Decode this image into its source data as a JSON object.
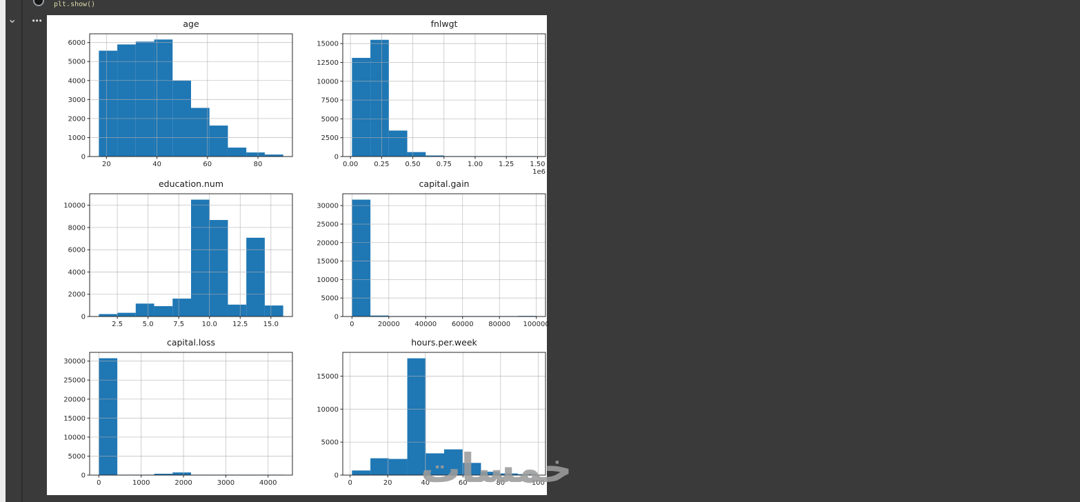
{
  "notebook": {
    "code_line": "plt.show()",
    "collapse_chevron": "⌄",
    "more_options": "⋯",
    "watermark": "خمسات"
  },
  "colors": {
    "bar": "#1f77b4",
    "grid": "#b0b0b0",
    "axis": "#262626",
    "page_bg": "#3a3a3a",
    "panel_bg": "#ffffff",
    "code_text": "#dcdcaa"
  },
  "chart_data": [
    {
      "type": "bar",
      "title": "age",
      "bin_start": 17,
      "bin_end": 90,
      "values": [
        5570,
        5900,
        6050,
        6160,
        4000,
        2560,
        1630,
        470,
        215,
        105
      ],
      "xlim": [
        13.35,
        93.65
      ],
      "ylim": [
        0,
        6460
      ],
      "xtick_vals": [
        20,
        40,
        60,
        80
      ],
      "xtick_labels": [
        "20",
        "40",
        "60",
        "80"
      ],
      "ytick_vals": [
        0,
        1000,
        2000,
        3000,
        4000,
        5000,
        6000
      ],
      "ytick_labels": [
        "0",
        "1000",
        "2000",
        "3000",
        "4000",
        "5000",
        "6000"
      ],
      "offset_label": ""
    },
    {
      "type": "bar",
      "title": "fnlwgt",
      "bin_start": 12300,
      "bin_end": 1490400,
      "values": [
        13100,
        15500,
        3450,
        590,
        140,
        45,
        15,
        8,
        3,
        2
      ],
      "xlim": [
        -61600,
        1564300
      ],
      "ylim": [
        0,
        16300
      ],
      "xtick_vals": [
        0,
        250000,
        500000,
        750000,
        1000000,
        1250000,
        1500000
      ],
      "xtick_labels": [
        "0.00",
        "0.25",
        "0.50",
        "0.75",
        "1.00",
        "1.25",
        "1.50"
      ],
      "ytick_vals": [
        0,
        2500,
        5000,
        7500,
        10000,
        12500,
        15000
      ],
      "ytick_labels": [
        "0",
        "2500",
        "5000",
        "7500",
        "10000",
        "12500",
        "15000"
      ],
      "offset_label": "1e6"
    },
    {
      "type": "bar",
      "title": "education.num",
      "bin_start": 1,
      "bin_end": 16,
      "values": [
        219,
        333,
        1160,
        933,
        1608,
        10501,
        8673,
        1067,
        7078,
        989
      ],
      "xlim": [
        0.25,
        16.75
      ],
      "ylim": [
        0,
        11030
      ],
      "xtick_vals": [
        2.5,
        5.0,
        7.5,
        10.0,
        12.5,
        15.0
      ],
      "xtick_labels": [
        "2.5",
        "5.0",
        "7.5",
        "10.0",
        "12.5",
        "15.0"
      ],
      "ytick_vals": [
        0,
        2000,
        4000,
        6000,
        8000,
        10000
      ],
      "ytick_labels": [
        "0",
        "2000",
        "4000",
        "6000",
        "8000",
        "10000"
      ],
      "offset_label": ""
    },
    {
      "type": "bar",
      "title": "capital.gain",
      "bin_start": 0,
      "bin_end": 99999,
      "values": [
        31610,
        260,
        80,
        25,
        10,
        6,
        3,
        2,
        1,
        159
      ],
      "xlim": [
        -5000,
        104999
      ],
      "ylim": [
        0,
        33200
      ],
      "xtick_vals": [
        0,
        20000,
        40000,
        60000,
        80000,
        100000
      ],
      "xtick_labels": [
        "0",
        "20000",
        "40000",
        "60000",
        "80000",
        "100000"
      ],
      "ytick_vals": [
        0,
        5000,
        10000,
        15000,
        20000,
        25000,
        30000
      ],
      "ytick_labels": [
        "0",
        "5000",
        "10000",
        "15000",
        "20000",
        "25000",
        "30000"
      ],
      "offset_label": ""
    },
    {
      "type": "bar",
      "title": "capital.loss",
      "bin_start": 0,
      "bin_end": 4356,
      "values": [
        30750,
        12,
        6,
        360,
        700,
        110,
        18,
        6,
        2,
        1
      ],
      "xlim": [
        -218,
        4574
      ],
      "ylim": [
        0,
        32300
      ],
      "xtick_vals": [
        0,
        1000,
        2000,
        3000,
        4000
      ],
      "xtick_labels": [
        "0",
        "1000",
        "2000",
        "3000",
        "4000"
      ],
      "ytick_vals": [
        0,
        5000,
        10000,
        15000,
        20000,
        25000,
        30000
      ],
      "ytick_labels": [
        "0",
        "5000",
        "10000",
        "15000",
        "20000",
        "25000",
        "30000"
      ],
      "offset_label": ""
    },
    {
      "type": "bar",
      "title": "hours.per.week",
      "bin_start": 1,
      "bin_end": 99,
      "values": [
        700,
        2550,
        2450,
        17700,
        3300,
        3900,
        1850,
        510,
        250,
        140
      ],
      "xlim": [
        -3.9,
        103.9
      ],
      "ylim": [
        0,
        18600
      ],
      "xtick_vals": [
        0,
        20,
        40,
        60,
        80,
        100
      ],
      "xtick_labels": [
        "0",
        "20",
        "40",
        "60",
        "80",
        "100"
      ],
      "ytick_vals": [
        0,
        5000,
        10000,
        15000
      ],
      "ytick_labels": [
        "0",
        "5000",
        "10000",
        "15000"
      ],
      "offset_label": ""
    }
  ]
}
